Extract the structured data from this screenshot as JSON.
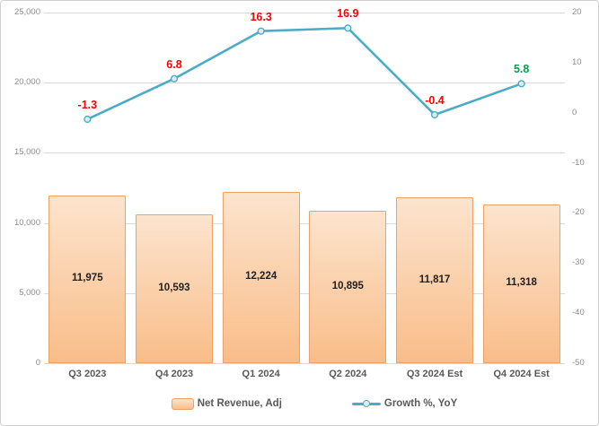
{
  "chart_data": {
    "type": "combo",
    "title": "",
    "categories": [
      "Q3 2023",
      "Q4 2023",
      "Q1 2024",
      "Q2 2024",
      "Q3 2024 Est",
      "Q4 2024 Est"
    ],
    "series": [
      {
        "name": "Net Revenue, Adj",
        "chart_type": "bar",
        "axis": "left",
        "values": [
          11975,
          10593,
          12224,
          10895,
          11817,
          11318
        ],
        "data_labels": [
          "11,975",
          "10,593",
          "12,224",
          "10,895",
          "11,817",
          "11,318"
        ]
      },
      {
        "name": "Growth %, YoY",
        "chart_type": "line",
        "axis": "right",
        "values": [
          -1.3,
          6.8,
          16.3,
          16.9,
          -0.4,
          5.8
        ],
        "data_labels": [
          "-1.3",
          "6.8",
          "16.3",
          "16.9",
          "-0.4",
          "5.8"
        ],
        "data_label_colors": [
          "#ff0000",
          "#ff0000",
          "#ff0000",
          "#ff0000",
          "#ff0000",
          "#00a14b"
        ]
      }
    ],
    "left_axis": {
      "min": 0,
      "max": 25000,
      "step": 5000,
      "tick_labels": [
        "0",
        "5,000",
        "10,000",
        "15,000",
        "20,000",
        "25,000"
      ]
    },
    "right_axis": {
      "min": -50,
      "max": 20,
      "step": 10,
      "tick_labels": [
        "-50",
        "-40",
        "-30",
        "-20",
        "-10",
        "0",
        "10",
        "20"
      ]
    },
    "grid": "horizontal",
    "legend_position": "bottom",
    "colors": {
      "bar_fill_top": "#fce4ce",
      "bar_fill_bottom": "#f9bd89",
      "bar_border": "#eca266",
      "line": "#4bacc6",
      "marker_fill": "#d9eef3",
      "gridline": "#d9d9d9",
      "axis_tick_text": "#8c8c8c",
      "category_text": "#595959",
      "bar_label_text": "#1f1f1f"
    }
  }
}
